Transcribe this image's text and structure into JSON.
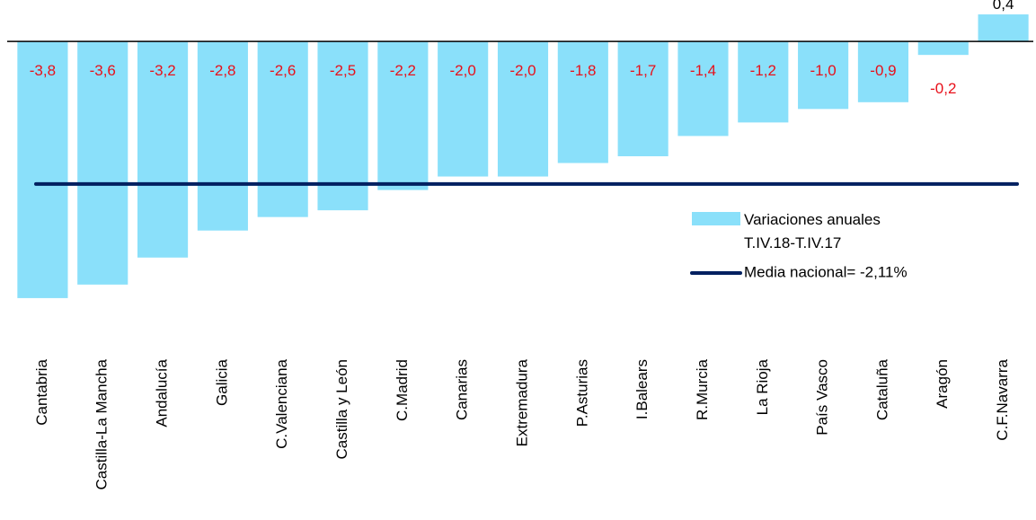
{
  "chart_data": {
    "type": "bar",
    "categories": [
      "Cantabria",
      "Castilla-La Mancha",
      "Andalucía",
      "Galicia",
      "C.Valenciana",
      "Castilla y León",
      "C.Madrid",
      "Canarias",
      "Extremadura",
      "P.Asturias",
      "I.Balears",
      "R.Murcia",
      "La Rioja",
      "País Vasco",
      "Cataluña",
      "Aragón",
      "C.F.Navarra"
    ],
    "series": [
      {
        "name": "Variaciones anuales T.IV.18-T.IV.17",
        "color": "#8ae0fa",
        "values": [
          -3.8,
          -3.6,
          -3.2,
          -2.8,
          -2.6,
          -2.5,
          -2.2,
          -2.0,
          -2.0,
          -1.8,
          -1.7,
          -1.4,
          -1.2,
          -1.0,
          -0.9,
          -0.2,
          0.4
        ],
        "value_labels": [
          "-3,8",
          "-3,6",
          "-3,2",
          "-2,8",
          "-2,6",
          "-2,5",
          "-2,2",
          "-2,0",
          "-2,0",
          "-1,8",
          "-1,7",
          "-1,4",
          "-1,2",
          "-1,0",
          "-0,9",
          "-0,2",
          "0,4"
        ]
      }
    ],
    "reference_line": {
      "name": "Media nacional= -2,11%",
      "value": -2.11,
      "color": "#002060"
    },
    "ylim": [
      -4.2,
      0.6
    ]
  }
}
